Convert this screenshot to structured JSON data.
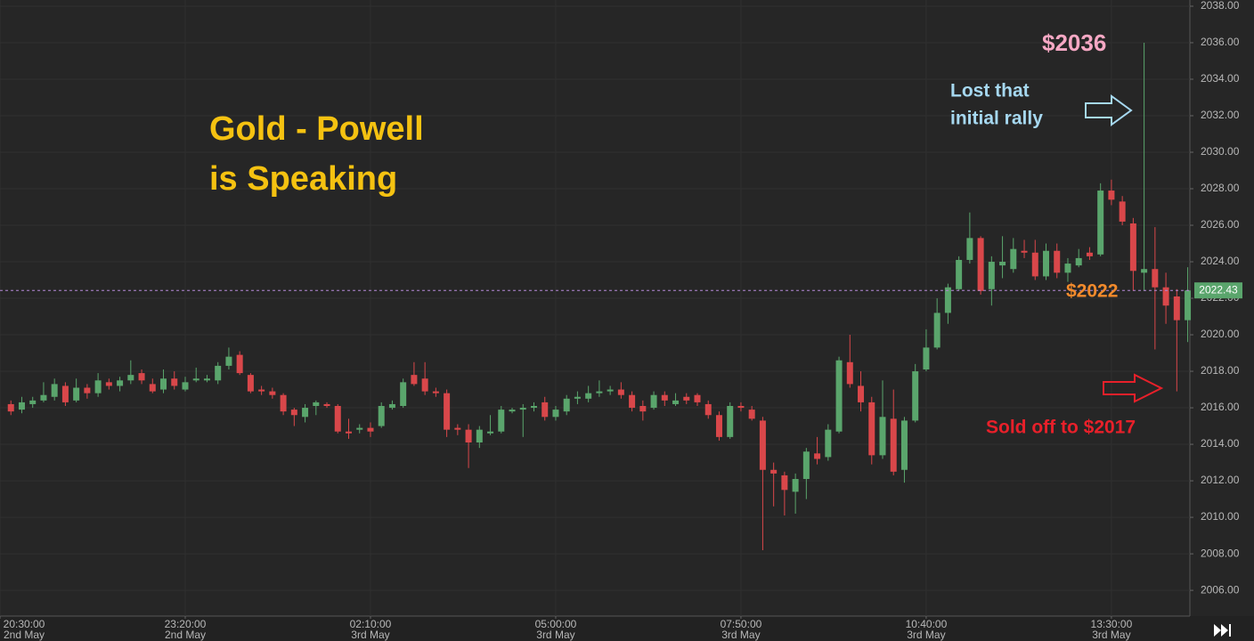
{
  "chart_data": {
    "type": "candlestick",
    "annotations": [
      "Gold - Powell",
      "is Speaking",
      "$2036",
      "Lost that",
      "initial rally",
      "$2022",
      "Sold off to $2017"
    ],
    "x": [
      1240,
      1250,
      1260,
      1270,
      1280,
      1290,
      1300,
      1310,
      1320,
      1330,
      1340,
      1350,
      1360,
      1370,
      1380,
      1390,
      1400,
      1410,
      1420,
      1430,
      1440,
      1450,
      1460,
      1470,
      1480,
      1490,
      1500,
      1510,
      1520,
      1530,
      1540,
      1550,
      1560,
      1570,
      1580,
      1590,
      1600,
      1610,
      1620,
      1630,
      1640,
      1650,
      1660,
      1670,
      1680,
      1690,
      1700,
      1710,
      1720,
      1730,
      1740,
      1750,
      1760,
      1770,
      1780,
      1790,
      1800,
      1810,
      1820,
      1830,
      1840,
      1850,
      1860,
      1870,
      1880,
      1890,
      1900,
      1910,
      1920,
      1930,
      1940,
      1950,
      1960,
      1970,
      1980,
      1990,
      2000,
      2010,
      2020,
      2030,
      2040,
      2050,
      2060,
      2070,
      2080,
      2090,
      2100,
      2110,
      2120,
      2130,
      2140,
      2150,
      2160,
      2170,
      2180,
      2190,
      2200,
      2210,
      2220,
      2230,
      2240,
      2250,
      2260,
      2270,
      2280,
      2290,
      2300,
      2310,
      2320
    ],
    "open": [
      2016.2,
      2015.9,
      2016.2,
      2016.4,
      2016.6,
      2017.2,
      2016.4,
      2017.1,
      2016.8,
      2017.4,
      2017.2,
      2017.5,
      2017.9,
      2017.3,
      2017.0,
      2017.6,
      2017.0,
      2017.5,
      2017.5,
      2017.5,
      2018.3,
      2018.9,
      2017.8,
      2017.0,
      2016.9,
      2016.7,
      2015.9,
      2015.5,
      2016.1,
      2016.2,
      2016.1,
      2014.7,
      2014.8,
      2014.9,
      2015.0,
      2016.0,
      2016.1,
      2017.8,
      2017.6,
      2016.9,
      2016.8,
      2014.9,
      2014.8,
      2014.1,
      2014.6,
      2014.7,
      2015.8,
      2015.9,
      2016.0,
      2016.3,
      2015.5,
      2015.8,
      2016.5,
      2016.5,
      2016.8,
      2016.9,
      2017.0,
      2016.7,
      2016.1,
      2016.0,
      2016.7,
      2016.2,
      2016.6,
      2016.7,
      2016.2,
      2015.6,
      2014.4,
      2016.1,
      2015.9,
      2015.3,
      2012.6,
      2012.3,
      2011.4,
      2012.1,
      2013.5,
      2013.3,
      2014.7,
      2018.5,
      2017.2,
      2016.3,
      2013.4,
      2015.4,
      2012.6,
      2015.3,
      2018.1,
      2019.3,
      2021.2,
      2022.5,
      2024.1,
      2025.3,
      2022.5,
      2023.8,
      2023.6,
      2024.6,
      2024.5,
      2023.2,
      2024.6,
      2023.4,
      2023.8,
      2024.5,
      2024.4,
      2027.9,
      2027.3,
      2026.1,
      2023.4,
      2023.6,
      2022.6,
      2022.1,
      2020.8
    ],
    "high": [
      2016.4,
      2016.6,
      2016.6,
      2017.4,
      2017.6,
      2017.4,
      2017.6,
      2017.3,
      2017.9,
      2017.6,
      2017.7,
      2018.6,
      2018.1,
      2017.6,
      2018.1,
      2018.0,
      2017.7,
      2018.2,
      2017.8,
      2018.5,
      2019.3,
      2019.1,
      2017.9,
      2017.2,
      2017.1,
      2016.8,
      2016.0,
      2016.2,
      2016.4,
      2016.3,
      2016.2,
      2015.4,
      2015.1,
      2015.2,
      2016.3,
      2016.4,
      2017.6,
      2018.5,
      2018.5,
      2017.1,
      2017.0,
      2015.1,
      2015.1,
      2015.0,
      2015.6,
      2016.1,
      2016.0,
      2016.2,
      2016.3,
      2016.6,
      2016.1,
      2016.7,
      2016.9,
      2017.2,
      2017.5,
      2017.2,
      2017.4,
      2016.9,
      2016.4,
      2016.9,
      2016.9,
      2016.8,
      2016.8,
      2016.8,
      2016.4,
      2015.8,
      2016.3,
      2016.3,
      2016.1,
      2015.5,
      2013.0,
      2012.5,
      2012.4,
      2013.8,
      2014.4,
      2015.1,
      2018.8,
      2020.0,
      2018.0,
      2016.6,
      2017.5,
      2017.0,
      2015.5,
      2018.4,
      2020.3,
      2022.0,
      2022.8,
      2024.3,
      2026.7,
      2025.4,
      2024.3,
      2025.4,
      2025.3,
      2025.2,
      2025.2,
      2025.0,
      2025.0,
      2024.2,
      2024.7,
      2024.8,
      2028.3,
      2028.5,
      2027.6,
      2026.4,
      2036.0,
      2025.9,
      2023.4,
      2022.5,
      2023.7
    ],
    "low": [
      2015.6,
      2015.7,
      2016.0,
      2016.3,
      2016.4,
      2016.1,
      2016.3,
      2016.5,
      2016.6,
      2017.0,
      2016.9,
      2017.3,
      2017.3,
      2016.8,
      2016.8,
      2017.0,
      2016.9,
      2017.4,
      2017.4,
      2017.3,
      2018.1,
      2017.8,
      2016.8,
      2016.7,
      2016.5,
      2015.6,
      2015.0,
      2015.2,
      2015.6,
      2016.0,
      2014.6,
      2014.3,
      2014.6,
      2014.4,
      2014.9,
      2015.9,
      2016.0,
      2017.2,
      2016.7,
      2016.6,
      2014.4,
      2014.5,
      2012.7,
      2013.8,
      2014.5,
      2014.6,
      2015.7,
      2014.4,
      2015.8,
      2015.3,
      2015.3,
      2015.6,
      2016.2,
      2016.3,
      2016.6,
      2016.7,
      2016.5,
      2015.8,
      2015.3,
      2015.9,
      2016.1,
      2016.1,
      2016.2,
      2016.1,
      2015.4,
      2014.2,
      2014.3,
      2015.8,
      2015.3,
      2008.2,
      2010.6,
      2010.1,
      2010.2,
      2011.0,
      2012.9,
      2013.1,
      2014.6,
      2017.1,
      2015.8,
      2012.9,
      2013.2,
      2012.3,
      2011.9,
      2015.2,
      2018.0,
      2019.2,
      2020.6,
      2022.4,
      2023.9,
      2022.2,
      2021.6,
      2023.1,
      2023.4,
      2024.2,
      2023.0,
      2023.0,
      2023.1,
      2022.9,
      2023.7,
      2024.1,
      2024.3,
      2027.1,
      2026.0,
      2022.4,
      2022.4,
      2019.2,
      2020.6,
      2016.9,
      2019.6
    ],
    "close": [
      2015.8,
      2016.3,
      2016.4,
      2016.7,
      2017.3,
      2016.3,
      2017.1,
      2016.8,
      2017.5,
      2017.2,
      2017.5,
      2017.8,
      2017.5,
      2016.9,
      2017.6,
      2017.2,
      2017.4,
      2017.6,
      2017.6,
      2018.3,
      2018.8,
      2017.9,
      2016.9,
      2016.9,
      2016.7,
      2015.8,
      2015.6,
      2016.0,
      2016.3,
      2016.1,
      2014.7,
      2014.6,
      2014.9,
      2014.7,
      2016.1,
      2016.2,
      2017.4,
      2017.3,
      2016.9,
      2016.8,
      2014.8,
      2014.8,
      2014.1,
      2014.8,
      2014.7,
      2015.9,
      2015.9,
      2016.0,
      2016.1,
      2015.5,
      2015.9,
      2016.5,
      2016.6,
      2016.8,
      2016.9,
      2017.0,
      2016.7,
      2016.0,
      2015.8,
      2016.7,
      2016.4,
      2016.4,
      2016.4,
      2016.3,
      2015.6,
      2014.4,
      2016.1,
      2016.0,
      2015.4,
      2012.6,
      2012.4,
      2011.5,
      2012.1,
      2013.6,
      2013.2,
      2014.8,
      2018.6,
      2017.3,
      2016.3,
      2013.4,
      2015.5,
      2012.5,
      2015.3,
      2018.0,
      2019.3,
      2021.2,
      2022.6,
      2024.1,
      2025.3,
      2022.4,
      2024.0,
      2024.0,
      2024.7,
      2024.5,
      2023.2,
      2024.6,
      2023.4,
      2023.9,
      2024.2,
      2024.3,
      2027.9,
      2027.4,
      2026.2,
      2023.5,
      2023.6,
      2022.6,
      2021.6,
      2020.8,
      2022.43
    ],
    "up_color": "#5aa56c",
    "down_color": "#d9474a",
    "last_price": 2022.43,
    "xlim": [
      1230,
      2322
    ],
    "ylim": [
      2004.59,
      2038.34
    ],
    "xticks": [
      {
        "value": 1230,
        "label": "20:30:00",
        "date": "2nd May"
      },
      {
        "value": 1400,
        "label": "23:20:00",
        "date": "2nd May"
      },
      {
        "value": 1570,
        "label": "02:10:00",
        "date": "3rd May"
      },
      {
        "value": 1740,
        "label": "05:00:00",
        "date": "3rd May"
      },
      {
        "value": 1910,
        "label": "07:50:00",
        "date": "3rd May"
      },
      {
        "value": 2080,
        "label": "10:40:00",
        "date": "3rd May"
      },
      {
        "value": 2250,
        "label": "13:30:00",
        "date": "3rd May"
      }
    ],
    "yticks": [
      {
        "value": 2006,
        "label": "2006.00"
      },
      {
        "value": 2008,
        "label": "2008.00"
      },
      {
        "value": 2010,
        "label": "2010.00"
      },
      {
        "value": 2012,
        "label": "2012.00"
      },
      {
        "value": 2014,
        "label": "2014.00"
      },
      {
        "value": 2016,
        "label": "2016.00"
      },
      {
        "value": 2018,
        "label": "2018.00"
      },
      {
        "value": 2020,
        "label": "2020.00"
      },
      {
        "value": 2022,
        "label": "2022.00"
      },
      {
        "value": 2024,
        "label": "2024.00"
      },
      {
        "value": 2026,
        "label": "2026.00"
      },
      {
        "value": 2028,
        "label": "2028.00"
      },
      {
        "value": 2030,
        "label": "2030.00"
      },
      {
        "value": 2032,
        "label": "2032.00"
      },
      {
        "value": 2034,
        "label": "2034.00"
      },
      {
        "value": 2036,
        "label": "2036.00"
      },
      {
        "value": 2038,
        "label": "2038.00"
      }
    ],
    "grid": true
  }
}
